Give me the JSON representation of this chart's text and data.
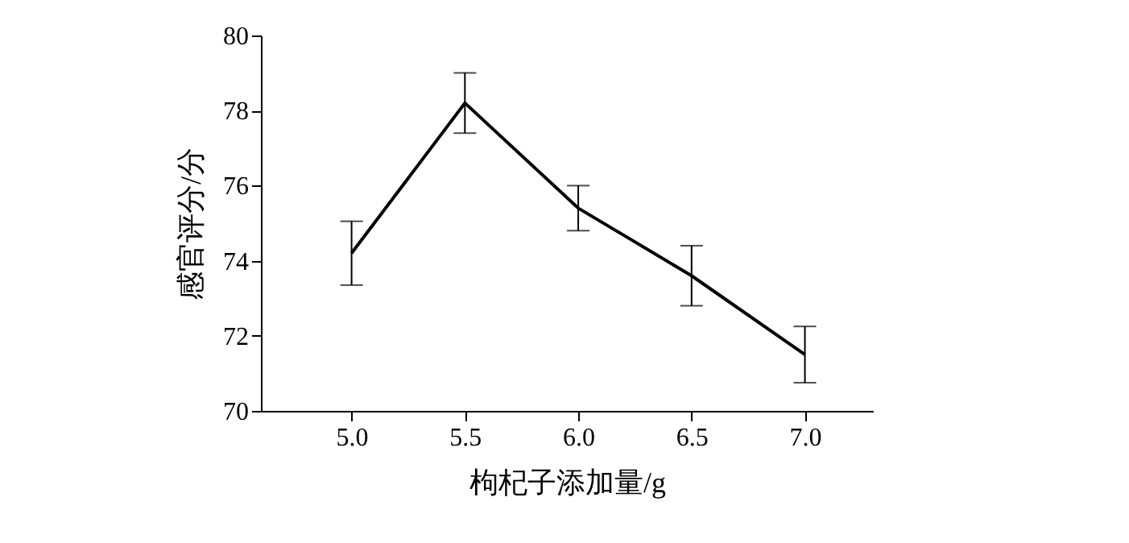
{
  "chart_data": {
    "type": "line",
    "xlabel": "枸杞子添加量/g",
    "ylabel": "感官评分/分",
    "x": [
      5.0,
      5.5,
      6.0,
      6.5,
      7.0
    ],
    "series": [
      {
        "color": "#000000",
        "values": [
          74.2,
          78.2,
          75.4,
          73.6,
          71.5
        ],
        "errors": [
          0.85,
          0.8,
          0.6,
          0.8,
          0.75
        ]
      }
    ],
    "xlim": [
      4.6,
      7.3
    ],
    "ylim": [
      70,
      80
    ],
    "xticks": [
      {
        "value": 5.0,
        "label": "5.0"
      },
      {
        "value": 5.5,
        "label": "5.5"
      },
      {
        "value": 6.0,
        "label": "6.0"
      },
      {
        "value": 6.5,
        "label": "6.5"
      },
      {
        "value": 7.0,
        "label": "7.0"
      }
    ],
    "yticks": [
      70,
      72,
      74,
      76,
      78,
      80
    ],
    "grid": false,
    "marker": "none",
    "line_style": "solid"
  }
}
